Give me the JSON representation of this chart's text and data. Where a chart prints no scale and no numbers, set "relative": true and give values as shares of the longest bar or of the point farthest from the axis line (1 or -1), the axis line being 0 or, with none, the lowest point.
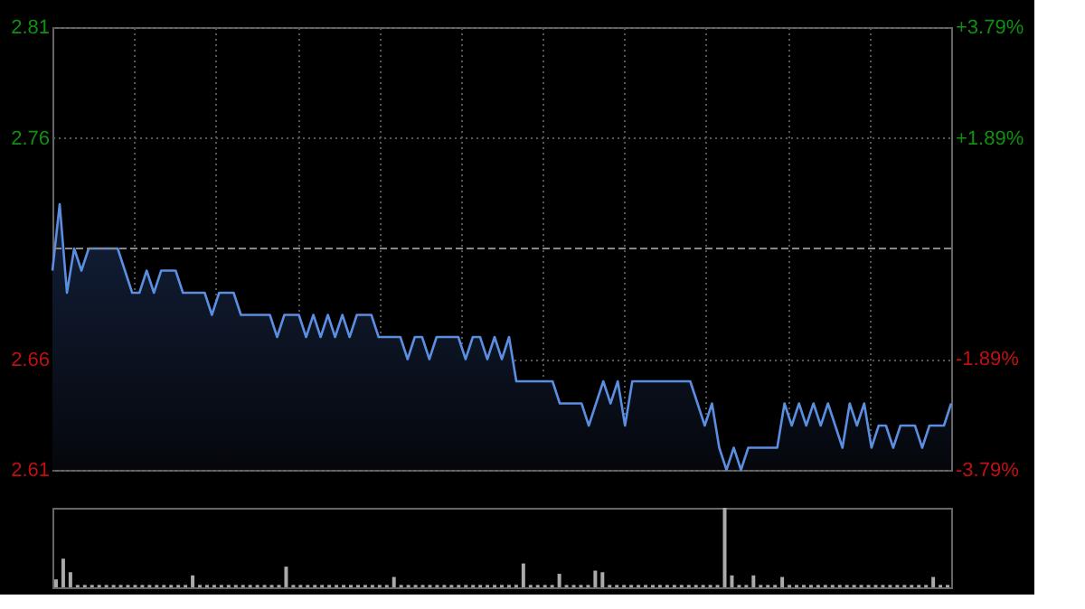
{
  "chart_data": [
    {
      "type": "area",
      "categories": [
        null,
        null,
        null,
        null,
        null,
        null,
        null,
        null,
        null,
        null,
        null,
        null,
        null,
        null,
        null,
        null,
        null,
        null,
        null,
        null,
        null,
        null,
        null,
        null,
        null,
        null,
        null,
        null,
        null,
        null,
        null,
        null,
        null,
        null,
        null,
        null,
        null,
        null,
        null,
        null,
        null,
        null,
        null,
        null,
        null,
        null,
        null,
        null,
        null,
        null,
        null,
        null,
        null,
        null,
        null,
        null,
        null,
        null,
        null,
        null,
        null,
        null,
        null,
        null,
        null,
        null,
        null,
        null,
        null,
        null,
        null,
        null,
        null,
        null,
        null,
        null,
        null,
        null,
        null,
        null,
        null,
        null,
        null,
        null,
        null,
        null,
        null,
        null,
        null,
        null,
        null,
        null,
        null,
        null,
        null,
        null,
        null,
        null,
        null,
        null,
        null,
        null,
        null,
        null,
        null,
        null,
        null,
        null,
        null,
        null,
        null,
        null,
        null,
        null,
        null,
        null,
        null,
        null,
        null,
        null,
        null,
        null,
        null,
        null,
        null
      ],
      "series": [
        {
          "color": "#5b8ee0",
          "values": [
            2.7,
            2.73,
            2.69,
            2.71,
            2.7,
            2.71,
            2.71,
            2.71,
            2.71,
            2.71,
            2.7,
            2.69,
            2.69,
            2.7,
            2.69,
            2.7,
            2.7,
            2.7,
            2.69,
            2.69,
            2.69,
            2.69,
            2.68,
            2.69,
            2.69,
            2.69,
            2.68,
            2.68,
            2.68,
            2.68,
            2.68,
            2.67,
            2.68,
            2.68,
            2.68,
            2.67,
            2.68,
            2.67,
            2.68,
            2.67,
            2.68,
            2.67,
            2.68,
            2.68,
            2.68,
            2.67,
            2.67,
            2.67,
            2.67,
            2.66,
            2.67,
            2.67,
            2.66,
            2.67,
            2.67,
            2.67,
            2.67,
            2.66,
            2.67,
            2.67,
            2.66,
            2.67,
            2.66,
            2.67,
            2.65,
            2.65,
            2.65,
            2.65,
            2.65,
            2.65,
            2.64,
            2.64,
            2.64,
            2.64,
            2.63,
            2.64,
            2.65,
            2.64,
            2.65,
            2.63,
            2.65,
            2.65,
            2.65,
            2.65,
            2.65,
            2.65,
            2.65,
            2.65,
            2.65,
            2.64,
            2.63,
            2.64,
            2.62,
            2.61,
            2.62,
            2.61,
            2.62,
            2.62,
            2.62,
            2.62,
            2.62,
            2.64,
            2.63,
            2.64,
            2.63,
            2.64,
            2.63,
            2.64,
            2.63,
            2.62,
            2.64,
            2.63,
            2.64,
            2.62,
            2.63,
            2.63,
            2.62,
            2.63,
            2.63,
            2.63,
            2.62,
            2.63,
            2.63,
            2.63,
            2.64
          ]
        }
      ],
      "ylim": [
        2.61,
        2.81
      ],
      "yticks": [
        2.61,
        2.66,
        2.76,
        2.81
      ],
      "y2lim": [
        -3.79,
        3.79
      ],
      "y2ticks": [
        {
          "value": 3.79,
          "label": "+3.79%"
        },
        {
          "value": 1.89,
          "label": "+1.89%"
        },
        {
          "value": -1.89,
          "label": "-1.89%"
        },
        {
          "value": -3.79,
          "label": "-3.79%"
        }
      ],
      "ref_lines": [
        {
          "axis": "y",
          "value": 2.71,
          "color": "#888888",
          "line_style": "dashed"
        }
      ],
      "grid": true,
      "tick_labels": "y"
    },
    {
      "type": "bar",
      "relative": true,
      "color": "#aaaaaa",
      "categories": [
        null,
        null,
        null,
        null,
        null,
        null,
        null,
        null,
        null,
        null,
        null,
        null,
        null,
        null,
        null,
        null,
        null,
        null,
        null,
        null,
        null,
        null,
        null,
        null,
        null,
        null,
        null,
        null,
        null,
        null,
        null,
        null,
        null,
        null,
        null,
        null,
        null,
        null,
        null,
        null,
        null,
        null,
        null,
        null,
        null,
        null,
        null,
        null,
        null,
        null,
        null,
        null,
        null,
        null,
        null,
        null,
        null,
        null,
        null,
        null,
        null,
        null,
        null,
        null,
        null,
        null,
        null,
        null,
        null,
        null,
        null,
        null,
        null,
        null,
        null,
        null,
        null,
        null,
        null,
        null,
        null,
        null,
        null,
        null,
        null,
        null,
        null,
        null,
        null,
        null,
        null,
        null,
        null,
        null,
        null,
        null,
        null,
        null,
        null,
        null,
        null,
        null,
        null,
        null,
        null,
        null,
        null,
        null,
        null,
        null,
        null,
        null,
        null,
        null,
        null,
        null,
        null,
        null,
        null,
        null,
        null,
        null,
        null,
        null,
        null
      ],
      "values": [
        0.1,
        0.36,
        0.19,
        0.03,
        0.03,
        0.03,
        0.03,
        0.03,
        0.03,
        0.03,
        0.03,
        0.03,
        0.03,
        0.03,
        0.03,
        0.03,
        0.03,
        0.03,
        0.03,
        0.15,
        0.03,
        0.03,
        0.03,
        0.03,
        0.03,
        0.03,
        0.03,
        0.03,
        0.03,
        0.03,
        0.03,
        0.03,
        0.26,
        0.03,
        0.03,
        0.03,
        0.03,
        0.03,
        0.03,
        0.03,
        0.03,
        0.03,
        0.03,
        0.03,
        0.03,
        0.03,
        0.03,
        0.13,
        0.03,
        0.03,
        0.03,
        0.03,
        0.03,
        0.03,
        0.03,
        0.03,
        0.03,
        0.03,
        0.03,
        0.03,
        0.03,
        0.03,
        0.03,
        0.03,
        0.03,
        0.3,
        0.03,
        0.03,
        0.03,
        0.03,
        0.17,
        0.03,
        0.03,
        0.03,
        0.03,
        0.21,
        0.19,
        0.03,
        0.03,
        0.03,
        0.03,
        0.03,
        0.03,
        0.03,
        0.03,
        0.03,
        0.03,
        0.03,
        0.03,
        0.03,
        0.03,
        0.03,
        0.03,
        1.0,
        0.15,
        0.03,
        0.03,
        0.15,
        0.03,
        0.03,
        0.03,
        0.13,
        0.03,
        0.03,
        0.03,
        0.03,
        0.03,
        0.03,
        0.03,
        0.03,
        0.03,
        0.03,
        0.03,
        0.03,
        0.03,
        0.03,
        0.03,
        0.03,
        0.03,
        0.03,
        0.03,
        0.03,
        0.13,
        0.03,
        0.03
      ]
    }
  ]
}
